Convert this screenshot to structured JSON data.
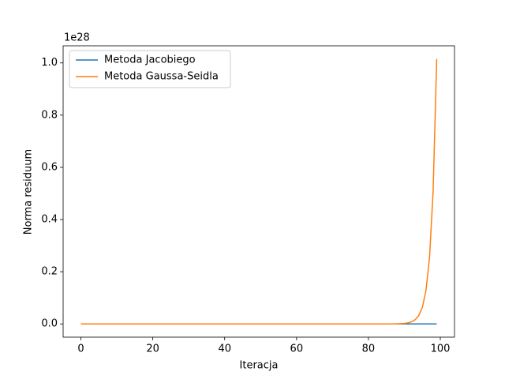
{
  "chart_data": {
    "type": "line",
    "xlabel": "Iteracja",
    "ylabel": "Norma residuum",
    "y_offset_text": "1e28",
    "x": [
      0,
      1,
      2,
      3,
      4,
      5,
      6,
      7,
      8,
      9,
      10,
      11,
      12,
      13,
      14,
      15,
      16,
      17,
      18,
      19,
      20,
      21,
      22,
      23,
      24,
      25,
      26,
      27,
      28,
      29,
      30,
      31,
      32,
      33,
      34,
      35,
      36,
      37,
      38,
      39,
      40,
      41,
      42,
      43,
      44,
      45,
      46,
      47,
      48,
      49,
      50,
      51,
      52,
      53,
      54,
      55,
      56,
      57,
      58,
      59,
      60,
      61,
      62,
      63,
      64,
      65,
      66,
      67,
      68,
      69,
      70,
      71,
      72,
      73,
      74,
      75,
      76,
      77,
      78,
      79,
      80,
      81,
      82,
      83,
      84,
      85,
      86,
      87,
      88,
      89,
      90,
      91,
      92,
      93,
      94,
      95,
      96,
      97,
      98,
      99
    ],
    "series": [
      {
        "name": "Metoda Jacobiego",
        "color": "#1f77b4",
        "values": [
          0,
          0,
          0,
          0,
          0,
          0,
          0,
          0,
          0,
          0,
          0,
          0,
          0,
          0,
          0,
          0,
          0,
          0,
          0,
          0,
          0,
          0,
          0,
          0,
          0,
          0,
          0,
          0,
          0,
          0,
          0,
          0,
          0,
          0,
          0,
          0,
          0,
          0,
          0,
          0,
          0,
          0,
          0,
          0,
          0,
          0,
          0,
          0,
          0,
          0,
          0,
          0,
          0,
          0,
          0,
          0,
          0,
          0,
          0,
          0,
          0,
          0,
          0,
          0,
          0,
          0,
          0,
          0,
          0,
          0,
          0,
          0,
          0,
          0,
          0,
          0,
          0,
          0,
          0,
          0,
          0,
          0,
          0,
          0,
          0,
          0,
          0,
          0,
          0,
          0,
          0,
          0,
          0,
          0,
          0,
          0,
          0,
          0,
          0,
          0
        ]
      },
      {
        "name": "Metoda Gaussa-Seidla",
        "color": "#ff7f0e",
        "values": [
          0,
          0,
          0,
          0,
          0,
          0,
          0,
          0,
          0,
          0,
          0,
          0,
          0,
          0,
          0,
          0,
          0,
          0,
          0,
          0,
          0,
          0,
          0,
          0,
          0,
          0,
          0,
          0,
          0,
          0,
          0,
          0,
          0,
          0,
          0,
          0,
          0,
          0,
          0,
          0,
          0,
          0,
          0,
          0,
          0,
          0,
          0,
          0,
          0,
          0,
          0,
          0,
          0,
          0,
          0,
          0,
          0,
          0,
          0,
          0,
          0,
          0,
          0,
          0,
          0,
          0,
          0,
          0,
          0,
          0,
          0,
          0,
          0,
          0,
          0,
          0,
          0,
          0,
          0,
          0,
          0,
          0,
          0,
          0,
          0,
          0,
          0,
          0,
          0.0005,
          0.001,
          0.002,
          0.004,
          0.008,
          0.016,
          0.032,
          0.063,
          0.127,
          0.254,
          0.508,
          1.015
        ]
      }
    ],
    "xlim": [
      -4.95,
      103.95
    ],
    "xticks": [
      0,
      20,
      40,
      60,
      80,
      100
    ],
    "ylim": [
      -0.0507,
      1.0657
    ],
    "yticks": [
      {
        "value": 0,
        "label": "0.0"
      },
      {
        "value": 0.2,
        "label": "0.2"
      },
      {
        "value": 0.4,
        "label": "0.4"
      },
      {
        "value": 0.6,
        "label": "0.6"
      },
      {
        "value": 0.8,
        "label": "0.8"
      },
      {
        "value": 1.0,
        "label": "1.0"
      }
    ],
    "legend": "upper left"
  }
}
